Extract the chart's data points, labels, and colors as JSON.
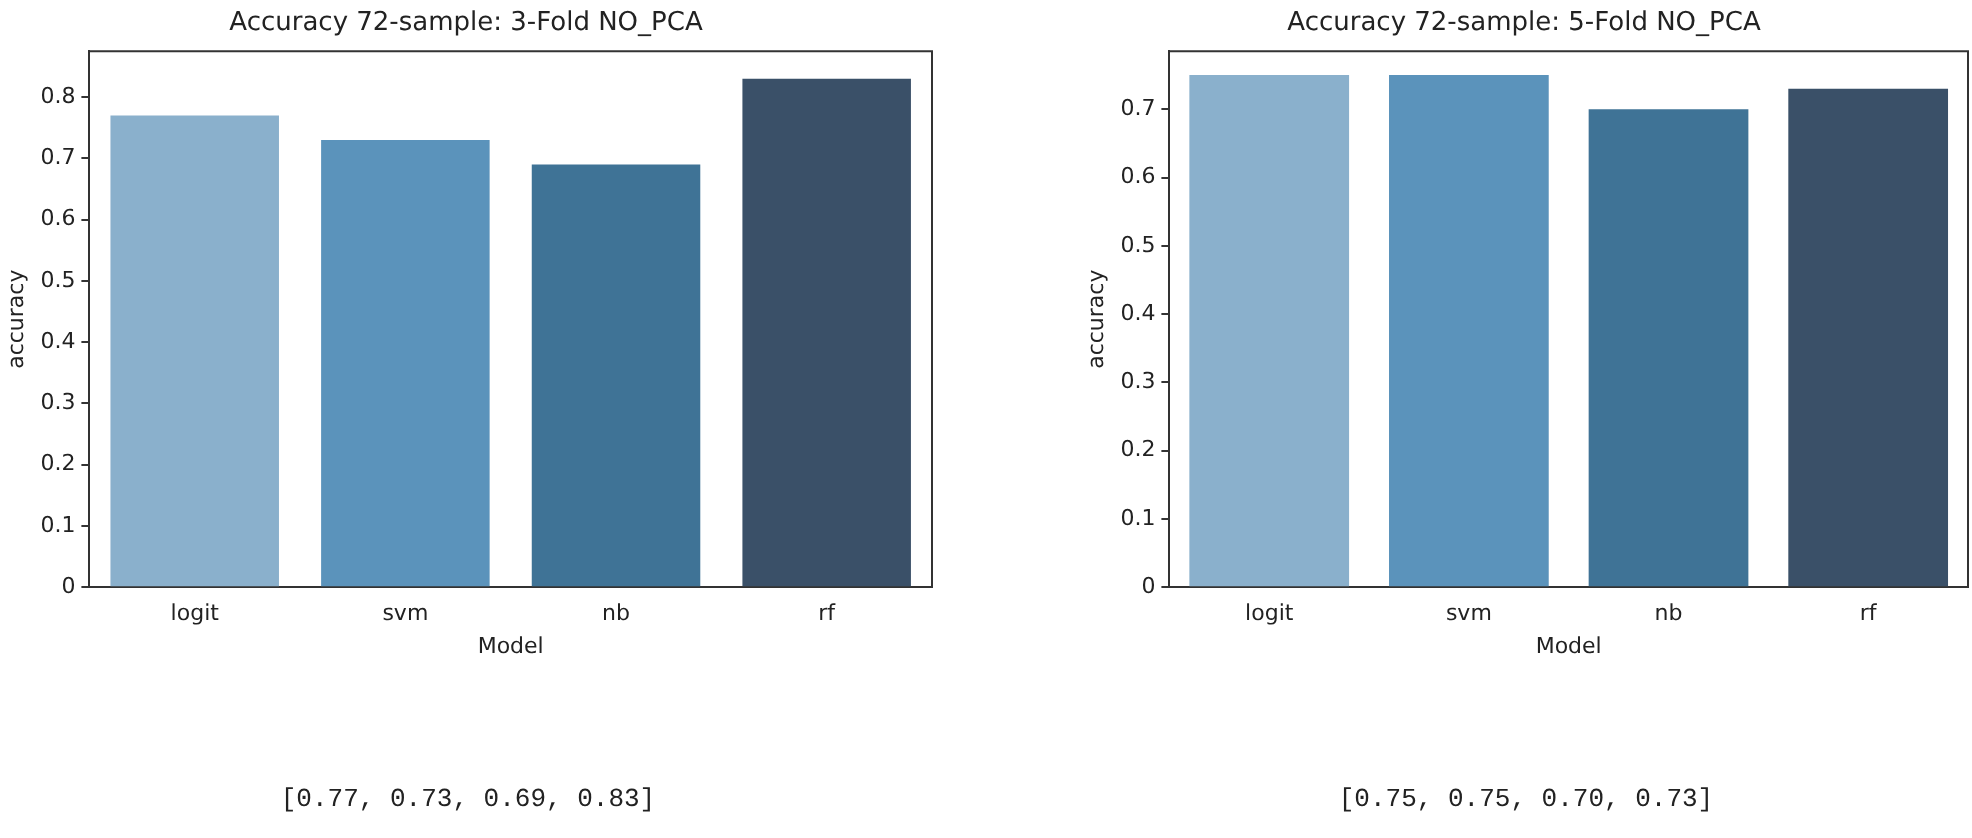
{
  "chart_data": [
    {
      "type": "bar",
      "title": "Accuracy 72-sample: 3-Fold NO_PCA",
      "xlabel": "Model",
      "ylabel": "accuracy",
      "categories": [
        "logit",
        "svm",
        "nb",
        "rf"
      ],
      "values": [
        0.77,
        0.73,
        0.69,
        0.83
      ],
      "colors": [
        "#8ab0cc",
        "#5b93bb",
        "#3f7396",
        "#3a5068"
      ],
      "ylim": [
        0,
        0.875
      ],
      "yticks": [
        0,
        0.1,
        0.2,
        0.3,
        0.4,
        0.5,
        0.6,
        0.7,
        0.8
      ],
      "grid": false,
      "legend": false,
      "annotations": [
        "[0.77, 0.73, 0.69, 0.83]"
      ]
    },
    {
      "type": "bar",
      "title": "Accuracy 72-sample: 5-Fold NO_PCA",
      "xlabel": "Model",
      "ylabel": "accuracy",
      "categories": [
        "logit",
        "svm",
        "nb",
        "rf"
      ],
      "values": [
        0.75,
        0.75,
        0.7,
        0.73
      ],
      "colors": [
        "#8ab0cc",
        "#5b93bb",
        "#3f7396",
        "#3a5068"
      ],
      "ylim": [
        0,
        0.785
      ],
      "yticks": [
        0,
        0.1,
        0.2,
        0.3,
        0.4,
        0.5,
        0.6,
        0.7
      ],
      "grid": false,
      "legend": false,
      "annotations": [
        "[0.75, 0.75, 0.70, 0.73]"
      ]
    }
  ]
}
